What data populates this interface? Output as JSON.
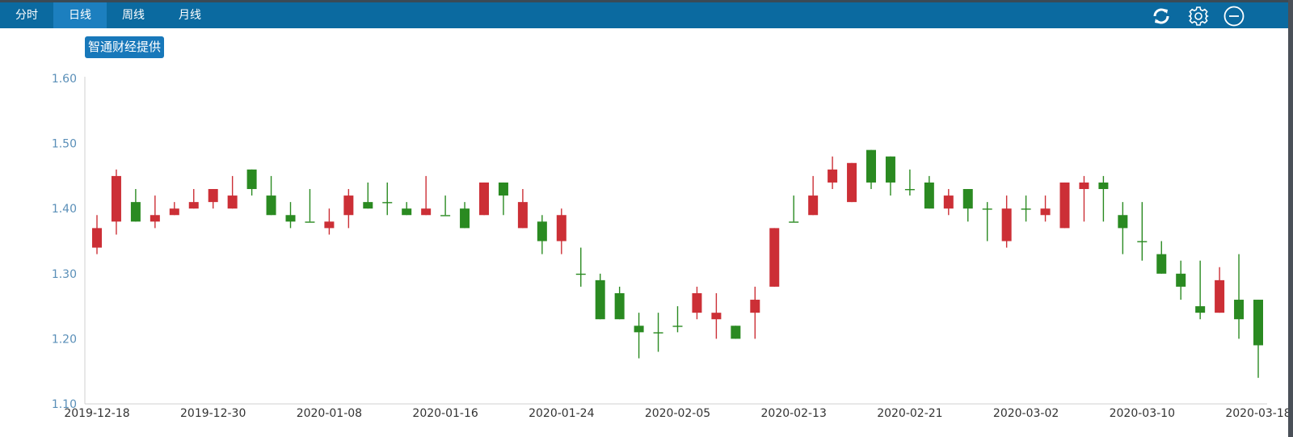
{
  "toolbar": {
    "tabs": [
      {
        "label": "分时",
        "active": false
      },
      {
        "label": "日线",
        "active": true
      },
      {
        "label": "周线",
        "active": false
      },
      {
        "label": "月线",
        "active": false
      }
    ],
    "icons": [
      "refresh-icon",
      "gear-icon",
      "minus-circle-icon"
    ]
  },
  "badge": "智通财经提供",
  "colors": {
    "toolbar": "#0b6aa0",
    "up": "#cc2f36",
    "down": "#2a8a21"
  },
  "chart_data": {
    "type": "candlestick",
    "ylim": [
      1.1,
      1.6
    ],
    "yticks": [
      "1.60",
      "1.50",
      "1.40",
      "1.30",
      "1.20",
      "1.10"
    ],
    "xticks": [
      "2019-12-18",
      "2019-12-30",
      "2020-01-08",
      "2020-01-16",
      "2020-01-24",
      "2020-02-05",
      "2020-02-13",
      "2020-02-21",
      "2020-03-02",
      "2020-03-10",
      "2020-03-18"
    ],
    "grid": false,
    "up_color": "red",
    "down_color": "green",
    "dates": [
      "2019-12-18",
      "2019-12-19",
      "2019-12-20",
      "2019-12-23",
      "2019-12-24",
      "2019-12-27",
      "2019-12-30",
      "2019-12-31",
      "2020-01-02",
      "2020-01-03",
      "2020-01-06",
      "2020-01-07",
      "2020-01-08",
      "2020-01-09",
      "2020-01-10",
      "2020-01-13",
      "2020-01-14",
      "2020-01-15",
      "2020-01-16",
      "2020-01-17",
      "2020-01-20",
      "2020-01-21",
      "2020-01-22",
      "2020-01-23",
      "2020-01-24",
      "2020-01-29",
      "2020-01-30",
      "2020-01-31",
      "2020-02-03",
      "2020-02-04",
      "2020-02-05",
      "2020-02-06",
      "2020-02-07",
      "2020-02-10",
      "2020-02-11",
      "2020-02-12",
      "2020-02-13",
      "2020-02-14",
      "2020-02-17",
      "2020-02-18",
      "2020-02-19",
      "2020-02-20",
      "2020-02-21",
      "2020-02-24",
      "2020-02-25",
      "2020-02-26",
      "2020-02-27",
      "2020-02-28",
      "2020-03-02",
      "2020-03-03",
      "2020-03-04",
      "2020-03-05",
      "2020-03-06",
      "2020-03-09",
      "2020-03-10",
      "2020-03-11",
      "2020-03-12",
      "2020-03-13",
      "2020-03-16",
      "2020-03-17",
      "2020-03-18"
    ],
    "ohlc": [
      [
        1.34,
        1.39,
        1.33,
        1.37
      ],
      [
        1.38,
        1.46,
        1.36,
        1.45
      ],
      [
        1.41,
        1.43,
        1.38,
        1.38
      ],
      [
        1.38,
        1.42,
        1.37,
        1.39
      ],
      [
        1.39,
        1.41,
        1.39,
        1.4
      ],
      [
        1.4,
        1.43,
        1.4,
        1.41
      ],
      [
        1.41,
        1.43,
        1.4,
        1.43
      ],
      [
        1.4,
        1.45,
        1.4,
        1.42
      ],
      [
        1.46,
        1.46,
        1.42,
        1.43
      ],
      [
        1.42,
        1.45,
        1.39,
        1.39
      ],
      [
        1.39,
        1.41,
        1.37,
        1.38
      ],
      [
        1.38,
        1.43,
        1.38,
        1.38
      ],
      [
        1.37,
        1.4,
        1.36,
        1.38
      ],
      [
        1.39,
        1.43,
        1.37,
        1.42
      ],
      [
        1.41,
        1.44,
        1.4,
        1.4
      ],
      [
        1.41,
        1.44,
        1.39,
        1.41
      ],
      [
        1.4,
        1.41,
        1.39,
        1.39
      ],
      [
        1.39,
        1.45,
        1.39,
        1.4
      ],
      [
        1.39,
        1.42,
        1.39,
        1.39
      ],
      [
        1.4,
        1.41,
        1.37,
        1.37
      ],
      [
        1.39,
        1.44,
        1.39,
        1.44
      ],
      [
        1.44,
        1.44,
        1.39,
        1.42
      ],
      [
        1.37,
        1.43,
        1.37,
        1.41
      ],
      [
        1.38,
        1.39,
        1.33,
        1.35
      ],
      [
        1.35,
        1.4,
        1.33,
        1.39
      ],
      [
        1.3,
        1.34,
        1.28,
        1.3
      ],
      [
        1.29,
        1.3,
        1.23,
        1.23
      ],
      [
        1.27,
        1.28,
        1.23,
        1.23
      ],
      [
        1.22,
        1.24,
        1.17,
        1.21
      ],
      [
        1.21,
        1.24,
        1.18,
        1.21
      ],
      [
        1.22,
        1.25,
        1.21,
        1.22
      ],
      [
        1.24,
        1.28,
        1.23,
        1.27
      ],
      [
        1.23,
        1.27,
        1.2,
        1.24
      ],
      [
        1.22,
        1.22,
        1.2,
        1.2
      ],
      [
        1.24,
        1.28,
        1.2,
        1.26
      ],
      [
        1.28,
        1.37,
        1.28,
        1.37
      ],
      [
        1.38,
        1.42,
        1.38,
        1.38
      ],
      [
        1.39,
        1.45,
        1.39,
        1.42
      ],
      [
        1.44,
        1.48,
        1.43,
        1.46
      ],
      [
        1.41,
        1.47,
        1.41,
        1.47
      ],
      [
        1.49,
        1.49,
        1.43,
        1.44
      ],
      [
        1.48,
        1.48,
        1.42,
        1.44
      ],
      [
        1.43,
        1.46,
        1.42,
        1.43
      ],
      [
        1.44,
        1.45,
        1.4,
        1.4
      ],
      [
        1.4,
        1.43,
        1.39,
        1.42
      ],
      [
        1.43,
        1.43,
        1.38,
        1.4
      ],
      [
        1.4,
        1.41,
        1.35,
        1.4
      ],
      [
        1.35,
        1.42,
        1.34,
        1.4
      ],
      [
        1.4,
        1.42,
        1.38,
        1.4
      ],
      [
        1.39,
        1.42,
        1.38,
        1.4
      ],
      [
        1.37,
        1.44,
        1.37,
        1.44
      ],
      [
        1.43,
        1.45,
        1.38,
        1.44
      ],
      [
        1.44,
        1.45,
        1.38,
        1.43
      ],
      [
        1.39,
        1.41,
        1.33,
        1.37
      ],
      [
        1.35,
        1.41,
        1.32,
        1.35
      ],
      [
        1.33,
        1.35,
        1.3,
        1.3
      ],
      [
        1.3,
        1.32,
        1.26,
        1.28
      ],
      [
        1.25,
        1.32,
        1.23,
        1.24
      ],
      [
        1.24,
        1.31,
        1.24,
        1.29
      ],
      [
        1.26,
        1.33,
        1.2,
        1.23
      ],
      [
        1.26,
        1.26,
        1.14,
        1.19
      ]
    ]
  }
}
